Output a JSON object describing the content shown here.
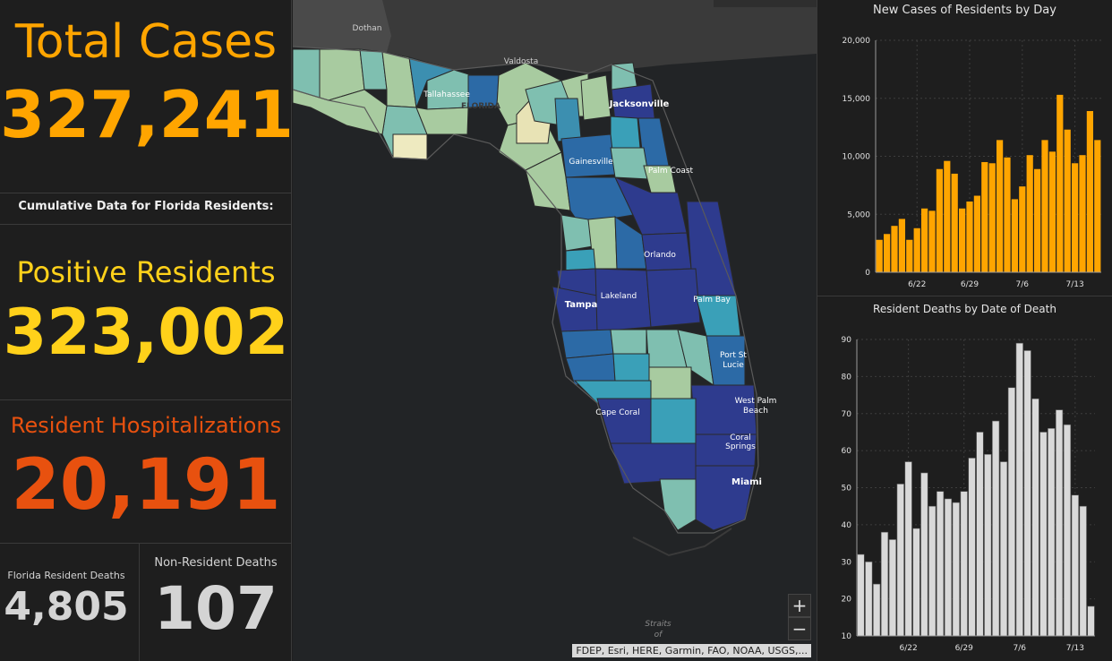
{
  "left": {
    "total_cases_label": "Total Cases",
    "total_cases_value": "327,241",
    "cumulative_note": "Cumulative Data for Florida Residents:",
    "positive_label": "Positive Residents",
    "positive_value": "323,002",
    "hosp_label": "Resident Hospitalizations",
    "hosp_value": "20,191",
    "fl_deaths_label": "Florida Resident Deaths",
    "fl_deaths_value": "4,805",
    "nonres_deaths_label": "Non-Resident Deaths",
    "nonres_deaths_value": "107"
  },
  "colors": {
    "orange": "#ffa500",
    "yellow": "#ffd11a",
    "red_orange": "#e8510f",
    "grey_text": "#d4d4d4"
  },
  "map": {
    "labels": {
      "dothan": "Dothan",
      "valdosta": "Valdosta",
      "tallahassee": "Tallahassee",
      "florida": "FLORIDA",
      "jacksonville": "Jacksonville",
      "gainesville": "Gainesville",
      "palm_coast": "Palm Coast",
      "orlando": "Orlando",
      "lakeland": "Lakeland",
      "tampa": "Tampa",
      "palm_bay": "Palm Bay",
      "port_st_lucie_1": "Port St",
      "port_st_lucie_2": "Lucie",
      "west_palm_1": "West Palm",
      "west_palm_2": "Beach",
      "cape_coral": "Cape Coral",
      "coral_springs_1": "Coral",
      "coral_springs_2": "Springs",
      "miami": "Miami",
      "straits_1": "Straits",
      "straits_2": "of"
    },
    "zoom_in": "+",
    "zoom_out": "−",
    "attribution": "FDEP, Esri, HERE, Garmin, FAO, NOAA, USGS,..."
  },
  "chart_data": [
    {
      "type": "bar",
      "title": "New Cases of Residents by Day",
      "color": "#ffa500",
      "ylim": [
        0,
        20000
      ],
      "yticks": [
        "0",
        "5,000",
        "10,000",
        "15,000",
        "20,000"
      ],
      "xticks": [
        "6/22",
        "6/29",
        "7/6",
        "7/13"
      ],
      "xtick_index": [
        5,
        12,
        19,
        26
      ],
      "values": [
        2800,
        3300,
        4000,
        4600,
        2800,
        3800,
        5500,
        5300,
        8900,
        9600,
        8500,
        5500,
        6100,
        6600,
        9500,
        9400,
        11400,
        9900,
        6300,
        7400,
        10100,
        8900,
        11400,
        10400,
        15300,
        12300,
        9400,
        10100,
        13900,
        11400
      ],
      "grid": true
    },
    {
      "type": "bar",
      "title": "Resident Deaths by Date of Death",
      "color": "#d9d9d9",
      "ylim": [
        10,
        90
      ],
      "yticks": [
        "10",
        "20",
        "30",
        "40",
        "50",
        "60",
        "70",
        "80",
        "90"
      ],
      "xticks": [
        "6/22",
        "6/29",
        "7/6",
        "7/13"
      ],
      "xtick_index": [
        6,
        13,
        20,
        27
      ],
      "values": [
        32,
        30,
        24,
        38,
        36,
        51,
        57,
        39,
        54,
        45,
        49,
        47,
        46,
        49,
        58,
        65,
        59,
        68,
        57,
        77,
        89,
        87,
        74,
        65,
        66,
        71,
        67,
        48,
        45,
        18
      ],
      "grid": true
    }
  ]
}
